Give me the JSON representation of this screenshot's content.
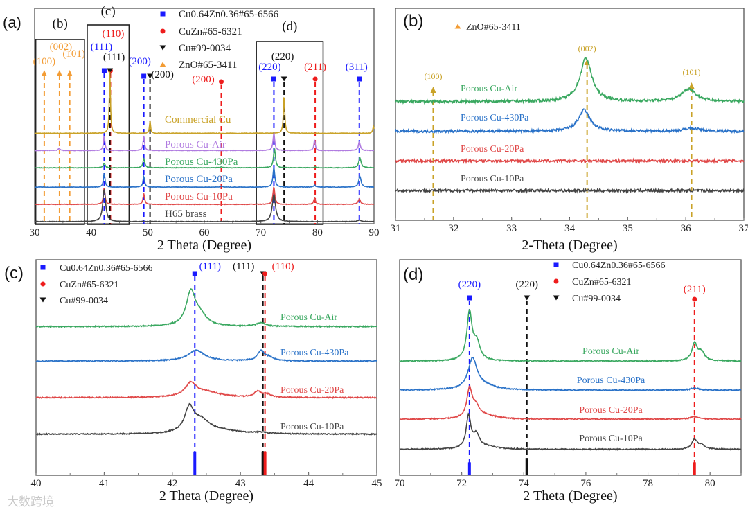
{
  "watermark": "大数跨境",
  "chart_data": [
    {
      "id": "a",
      "type": "line",
      "panel_label": "(a)",
      "xlabel": "2 Theta (Degree)",
      "ylabel": "",
      "xlim": [
        30,
        90
      ],
      "ylim": [
        0,
        100
      ],
      "xticks": [
        30,
        40,
        50,
        60,
        70,
        80,
        90
      ],
      "grid": false,
      "legend": [
        {
          "label": "Cu0.64Zn0.36#65-6566",
          "marker": "square",
          "color": "#1a1aff"
        },
        {
          "label": "CuZn#65-6321",
          "marker": "circle",
          "color": "#ee1c1c"
        },
        {
          "label": "Cu#99-0034",
          "marker": "tri-down",
          "color": "#111111"
        },
        {
          "label": "ZnO#65-3411",
          "marker": "tri-up",
          "color": "#f39c34"
        }
      ],
      "sub_boxes": [
        {
          "label": "(b)",
          "x": [
            30.2,
            38.8
          ]
        },
        {
          "label": "(c)",
          "x": [
            39.3,
            46.7
          ]
        },
        {
          "label": "(d)",
          "x": [
            69.2,
            81.0
          ]
        }
      ],
      "ref_lines": [
        {
          "x": 31.7,
          "label": "(100)",
          "color": "#f39c34",
          "marker": "tri-up"
        },
        {
          "x": 34.4,
          "label": "(002)",
          "color": "#f39c34",
          "marker": "tri-up"
        },
        {
          "x": 36.2,
          "label": "(101)",
          "color": "#f39c34",
          "marker": "tri-up"
        },
        {
          "x": 42.3,
          "label": "(111)",
          "color": "#1a1aff",
          "marker": "square"
        },
        {
          "x": 43.4,
          "label": "(110)",
          "color": "#ee1c1c",
          "marker": "circle"
        },
        {
          "x": 43.3,
          "label": "(111)",
          "color": "#111111",
          "marker": "tri-down"
        },
        {
          "x": 49.3,
          "label": "(200)",
          "color": "#1a1aff",
          "marker": "square"
        },
        {
          "x": 50.4,
          "label": "(200)",
          "color": "#111111",
          "marker": "tri-down"
        },
        {
          "x": 63.0,
          "label": "(200)",
          "color": "#ee1c1c",
          "marker": "circle"
        },
        {
          "x": 72.3,
          "label": "(220)",
          "color": "#1a1aff",
          "marker": "square"
        },
        {
          "x": 74.1,
          "label": "(220)",
          "color": "#111111",
          "marker": "tri-down"
        },
        {
          "x": 79.6,
          "label": "(211)",
          "color": "#ee1c1c",
          "marker": "circle"
        },
        {
          "x": 87.4,
          "label": "(311)",
          "color": "#1a1aff",
          "marker": "square"
        }
      ],
      "series": [
        {
          "name": "Commercial Cu",
          "color": "#c9a227",
          "baseline": 42,
          "peaks": [
            [
              43.3,
              29,
              0.12
            ],
            [
              50.4,
              6,
              0.12
            ],
            [
              74.1,
              18,
              0.14
            ],
            [
              89.9,
              3,
              0.15
            ]
          ]
        },
        {
          "name": "Porous Cu-Air",
          "color": "#b07be0",
          "baseline": 34,
          "peaks": [
            [
              34.3,
              1,
              0.2
            ],
            [
              42.3,
              7,
              0.15
            ],
            [
              49.3,
              7,
              0.15
            ],
            [
              72.3,
              8,
              0.18
            ],
            [
              79.5,
              5,
              0.15
            ],
            [
              87.4,
              4,
              0.2
            ]
          ]
        },
        {
          "name": "Porous Cu-430Pa",
          "color": "#3aa860",
          "baseline": 26,
          "peaks": [
            [
              42.3,
              2,
              0.2
            ],
            [
              49.3,
              4,
              0.2
            ],
            [
              63.0,
              0.5,
              0.2
            ],
            [
              72.4,
              9,
              0.2
            ],
            [
              79.6,
              0.5,
              0.2
            ],
            [
              87.5,
              4.5,
              0.25
            ]
          ]
        },
        {
          "name": "Porous Cu-20Pa",
          "color": "#2a72c8",
          "baseline": 17,
          "peaks": [
            [
              42.3,
              6.5,
              0.17
            ],
            [
              49.3,
              5,
              0.17
            ],
            [
              63.0,
              0.5,
              0.2
            ],
            [
              72.3,
              9,
              0.2
            ],
            [
              79.5,
              1,
              0.2
            ],
            [
              87.5,
              5,
              0.25
            ]
          ]
        },
        {
          "name": "Porous Cu-10Pa",
          "color": "#e04848",
          "baseline": 9,
          "peaks": [
            [
              42.3,
              8,
              0.17
            ],
            [
              49.3,
              5,
              0.17
            ],
            [
              72.3,
              8,
              0.2
            ],
            [
              79.5,
              3,
              0.18
            ],
            [
              87.4,
              2.5,
              0.25
            ]
          ]
        },
        {
          "name": "H65 brass",
          "color": "#444444",
          "baseline": 1,
          "peaks": [
            [
              42.3,
              15,
              0.3
            ],
            [
              72.3,
              12.5,
              0.35
            ],
            [
              87.4,
              0.7,
              0.3
            ]
          ]
        }
      ]
    },
    {
      "id": "b",
      "type": "line",
      "panel_label": "(b)",
      "xlabel": "2-Theta (Degree)",
      "ylabel": "",
      "xlim": [
        31,
        37
      ],
      "ylim": [
        0,
        100
      ],
      "xticks": [
        31,
        32,
        33,
        34,
        35,
        36,
        37
      ],
      "grid": false,
      "legend": [
        {
          "label": "ZnO#65-3411",
          "marker": "tri-up",
          "color": "#f39c34"
        }
      ],
      "ref_lines": [
        {
          "x": 31.65,
          "label": "(100)",
          "color": "#c9a227",
          "marker": "tri-up"
        },
        {
          "x": 34.3,
          "label": "(002)",
          "color": "#c9a227",
          "marker": "tri-up"
        },
        {
          "x": 36.1,
          "label": "(101)",
          "color": "#c9a227",
          "marker": "tri-up"
        }
      ],
      "series": [
        {
          "name": "Porous Cu-Air",
          "color": "#3aa860",
          "baseline": 56,
          "peaks": [
            [
              34.28,
              20.6,
              0.12
            ],
            [
              36.05,
              6,
              0.15
            ]
          ]
        },
        {
          "name": "Porous Cu-430Pa",
          "color": "#2a72c8",
          "baseline": 42,
          "peaks": [
            [
              34.25,
              10,
              0.12
            ],
            [
              36.1,
              1.5,
              0.15
            ]
          ]
        },
        {
          "name": "Porous Cu-20Pa",
          "color": "#e04848",
          "baseline": 28,
          "peaks": []
        },
        {
          "name": "Porous Cu-10Pa",
          "color": "#444444",
          "baseline": 14,
          "peaks": []
        }
      ]
    },
    {
      "id": "c",
      "type": "line",
      "panel_label": "(c)",
      "xlabel": "2 Theta (Degree)",
      "ylabel": "",
      "xlim": [
        40,
        45
      ],
      "ylim": [
        0,
        100
      ],
      "xticks": [
        40,
        41,
        42,
        43,
        44,
        45
      ],
      "grid": false,
      "legend": [
        {
          "label": "Cu0.64Zn0.36#65-6566",
          "marker": "square",
          "color": "#1a1aff"
        },
        {
          "label": "CuZn#65-6321",
          "marker": "circle",
          "color": "#ee1c1c"
        },
        {
          "label": "Cu#99-0034",
          "marker": "tri-down",
          "color": "#111111"
        }
      ],
      "ref_lines": [
        {
          "x": 42.33,
          "label": "(111)",
          "color": "#1a1aff",
          "marker": "square",
          "stick": 11
        },
        {
          "x": 43.33,
          "label": "(111)",
          "color": "#111111",
          "marker": "tri-down",
          "stick": 11
        },
        {
          "x": 43.36,
          "label": "(110)",
          "color": "#ee1c1c",
          "marker": "circle",
          "stick": 11
        }
      ],
      "series": [
        {
          "name": "Porous Cu-Air",
          "color": "#3aa860",
          "baseline": 69,
          "peaks": [
            [
              42.27,
              15,
              0.08
            ],
            [
              42.4,
              5,
              0.12
            ],
            [
              43.3,
              1.6,
              0.08
            ]
          ]
        },
        {
          "name": "Porous Cu-430Pa",
          "color": "#2a72c8",
          "baseline": 53,
          "peaks": [
            [
              42.35,
              5,
              0.15
            ],
            [
              43.3,
              4.5,
              0.06
            ],
            [
              43.42,
              1.5,
              0.08
            ]
          ]
        },
        {
          "name": "Porous Cu-20Pa",
          "color": "#e04848",
          "baseline": 36,
          "peaks": [
            [
              42.27,
              6,
              0.1
            ],
            [
              42.5,
              2.5,
              0.25
            ],
            [
              43.25,
              2.5,
              0.06
            ],
            [
              43.38,
              1.5,
              0.07
            ]
          ]
        },
        {
          "name": "Porous Cu-10Pa",
          "color": "#444444",
          "baseline": 19,
          "peaks": [
            [
              42.25,
              11,
              0.08
            ],
            [
              42.42,
              5.5,
              0.15
            ],
            [
              42.7,
              1.5,
              0.35
            ],
            [
              43.3,
              0.6,
              0.1
            ]
          ]
        }
      ]
    },
    {
      "id": "d",
      "type": "line",
      "panel_label": "(d)",
      "xlabel": "2 Theta (Degree)",
      "ylabel": "",
      "xlim": [
        70,
        81
      ],
      "ylim": [
        0,
        100
      ],
      "xticks": [
        70,
        72,
        74,
        76,
        78,
        80
      ],
      "grid": false,
      "legend": [
        {
          "label": "Cu0.64Zn0.36#65-6566",
          "marker": "square",
          "color": "#1a1aff"
        },
        {
          "label": "CuZn#65-6321",
          "marker": "circle",
          "color": "#ee1c1c"
        },
        {
          "label": "Cu#99-0034",
          "marker": "tri-down",
          "color": "#111111"
        }
      ],
      "ref_lines": [
        {
          "x": 72.25,
          "label": "(220)",
          "color": "#1a1aff",
          "marker": "square",
          "stick": 6
        },
        {
          "x": 74.1,
          "label": "(220)",
          "color": "#111111",
          "marker": "tri-down",
          "stick": 8
        },
        {
          "x": 79.5,
          "label": "(211)",
          "color": "#ee1c1c",
          "marker": "circle",
          "stick": 6
        }
      ],
      "series": [
        {
          "name": "Porous Cu-Air",
          "color": "#3aa860",
          "baseline": 53,
          "peaks": [
            [
              72.25,
              22,
              0.1
            ],
            [
              72.48,
              8,
              0.13
            ],
            [
              79.5,
              8,
              0.1
            ],
            [
              79.72,
              4,
              0.12
            ]
          ]
        },
        {
          "name": "Porous Cu-430Pa",
          "color": "#2a72c8",
          "baseline": 39.5,
          "peaks": [
            [
              72.35,
              14,
              0.17
            ],
            [
              72.7,
              2,
              0.4
            ],
            [
              79.5,
              1,
              0.15
            ]
          ]
        },
        {
          "name": "Porous Cu-20Pa",
          "color": "#e04848",
          "baseline": 26,
          "peaks": [
            [
              72.25,
              13,
              0.1
            ],
            [
              72.45,
              5,
              0.15
            ],
            [
              72.8,
              1.5,
              0.4
            ],
            [
              79.5,
              1.3,
              0.15
            ]
          ]
        },
        {
          "name": "Porous Cu-10Pa",
          "color": "#444444",
          "baseline": 12,
          "peaks": [
            [
              72.22,
              15,
              0.09
            ],
            [
              72.47,
              6,
              0.12
            ],
            [
              72.8,
              1.2,
              0.4
            ],
            [
              79.5,
              4.5,
              0.1
            ],
            [
              79.72,
              2,
              0.12
            ]
          ]
        }
      ]
    }
  ]
}
